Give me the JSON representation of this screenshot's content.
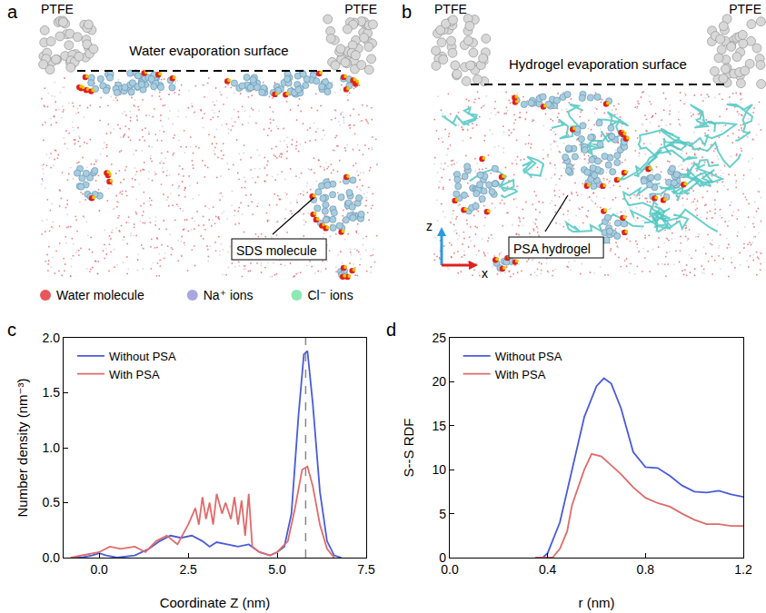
{
  "snapshots": {
    "panels": [
      {
        "letter": "a",
        "surface_label": "Water evaporation surface",
        "wall_labels": [
          "PTFE",
          "PTFE"
        ],
        "callout": "SDS molecule"
      },
      {
        "letter": "b",
        "surface_label": "Hydrogel evaporation surface",
        "wall_labels": [
          "PTFE",
          "PTFE"
        ],
        "callout": "PSA hydrogel",
        "axes": [
          "z",
          "x"
        ]
      }
    ],
    "legend": [
      {
        "label": "Water molecule",
        "color": "#e8575a"
      },
      {
        "label": "Na⁺ ions",
        "color": "#a9a6e0"
      },
      {
        "label": "Cl⁻ ions",
        "color": "#8ce8b5"
      }
    ]
  },
  "chart_data": [
    {
      "panel": "c",
      "type": "line",
      "x_label": "Coordinate Z (nm)",
      "y_label": "Number density (nm⁻³)",
      "xlim": [
        -1,
        7.5
      ],
      "xticks": [
        {
          "value": 0,
          "label": "0.0"
        },
        {
          "value": 2.5,
          "label": "2.5"
        },
        {
          "value": 5,
          "label": "5.0"
        },
        {
          "value": 7.5,
          "label": "7.5"
        }
      ],
      "ylim": [
        0,
        2
      ],
      "yticks": [
        {
          "value": 0,
          "label": "0.0"
        },
        {
          "value": 0.5,
          "label": "0.5"
        },
        {
          "value": 1,
          "label": "1.0"
        },
        {
          "value": 1.5,
          "label": "1.5"
        },
        {
          "value": 2,
          "label": "2.0"
        }
      ],
      "vline": 5.8,
      "grid": false,
      "legend": "top left",
      "series": [
        {
          "name": "Without PSA",
          "color": "#4a5bd9",
          "x": [
            -0.8,
            -0.5,
            -0.2,
            0,
            0.2,
            0.5,
            1.0,
            1.4,
            1.7,
            2.0,
            2.3,
            2.6,
            2.9,
            3.1,
            3.3,
            3.6,
            3.9,
            4.2,
            4.5,
            4.8,
            5.0,
            5.2,
            5.4,
            5.6,
            5.75,
            5.85,
            6.0,
            6.2,
            6.4,
            6.6,
            6.8
          ],
          "values": [
            0,
            0,
            0.02,
            0.04,
            0.02,
            0,
            0.02,
            0.08,
            0.15,
            0.2,
            0.18,
            0.2,
            0.15,
            0.1,
            0.14,
            0.12,
            0.1,
            0.12,
            0.05,
            0.02,
            0.05,
            0.1,
            0.4,
            1.3,
            1.85,
            1.88,
            1.4,
            0.6,
            0.15,
            0.02,
            0
          ]
        },
        {
          "name": "With PSA",
          "color": "#e06b6b",
          "x": [
            -0.8,
            -0.5,
            0,
            0.3,
            0.6,
            1.0,
            1.3,
            1.6,
            1.9,
            2.2,
            2.5,
            2.7,
            2.8,
            2.9,
            3.0,
            3.1,
            3.2,
            3.3,
            3.45,
            3.55,
            3.7,
            3.8,
            3.9,
            4.0,
            4.1,
            4.2,
            4.3,
            4.5,
            4.8,
            5.0,
            5.3,
            5.5,
            5.7,
            5.85,
            6.0,
            6.2,
            6.4,
            6.6
          ],
          "values": [
            0,
            0.02,
            0.05,
            0.1,
            0.08,
            0.1,
            0.05,
            0.15,
            0.2,
            0.12,
            0.3,
            0.45,
            0.3,
            0.55,
            0.35,
            0.5,
            0.3,
            0.58,
            0.4,
            0.5,
            0.35,
            0.55,
            0.3,
            0.52,
            0.2,
            0.58,
            0.1,
            0.05,
            0.02,
            0.05,
            0.15,
            0.45,
            0.8,
            0.83,
            0.65,
            0.3,
            0.08,
            0
          ]
        }
      ]
    },
    {
      "panel": "d",
      "type": "line",
      "x_label": "r (nm)",
      "y_label": "S--S RDF",
      "xlim": [
        0,
        1.2
      ],
      "xticks": [
        {
          "value": 0,
          "label": "0.0"
        },
        {
          "value": 0.4,
          "label": "0.4"
        },
        {
          "value": 0.8,
          "label": "0.8"
        },
        {
          "value": 1.2,
          "label": "1.2"
        }
      ],
      "ylim": [
        0,
        25
      ],
      "yticks": [
        0,
        5,
        10,
        15,
        20,
        25
      ],
      "grid": false,
      "legend": "top left",
      "series": [
        {
          "name": "Without PSA",
          "color": "#4a5bd9",
          "x": [
            0.35,
            0.38,
            0.4,
            0.45,
            0.5,
            0.55,
            0.6,
            0.63,
            0.66,
            0.7,
            0.75,
            0.8,
            0.85,
            0.9,
            0.95,
            1.0,
            1.05,
            1.1,
            1.15,
            1.2
          ],
          "values": [
            0,
            0,
            0.5,
            4,
            10,
            16,
            19.5,
            20.4,
            19.8,
            17,
            12,
            10.3,
            10.2,
            9.3,
            8.2,
            7.5,
            7.4,
            7.6,
            7.2,
            6.9
          ]
        },
        {
          "name": "With PSA",
          "color": "#e06b6b",
          "x": [
            0.35,
            0.42,
            0.45,
            0.48,
            0.5,
            0.55,
            0.58,
            0.62,
            0.66,
            0.7,
            0.75,
            0.8,
            0.85,
            0.9,
            0.95,
            1.0,
            1.05,
            1.1,
            1.15,
            1.2
          ],
          "values": [
            0,
            0,
            1,
            3,
            6,
            10,
            11.8,
            11.5,
            10.5,
            9.5,
            8,
            6.8,
            6.2,
            5.8,
            5,
            4.3,
            3.8,
            3.8,
            3.6,
            3.6
          ]
        }
      ]
    }
  ]
}
